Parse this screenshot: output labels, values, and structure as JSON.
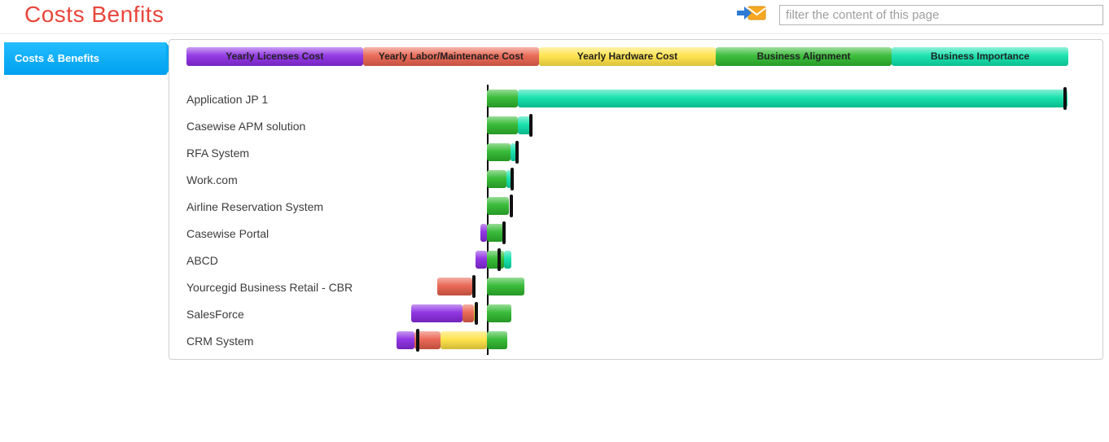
{
  "header": {
    "title": "Costs Benfits",
    "filter_placeholder": "filter the content of this page"
  },
  "sidebar": {
    "tab_label": "Costs & Benefits",
    "tab_color": "#00a8f0"
  },
  "legend": [
    {
      "label": "Yearly Licenses Cost",
      "color": "#8b2be2"
    },
    {
      "label": "Yearly Labor/Maintenance Cost",
      "color": "#e8604c"
    },
    {
      "label": "Yearly Hardware Cost",
      "color": "#ffe243"
    },
    {
      "label": "Business Alignment",
      "color": "#2eb82e"
    },
    {
      "label": "Business Importance",
      "color": "#0ce0aa"
    }
  ],
  "chart_data": {
    "type": "bar",
    "orientation": "horizontal-diverging",
    "note": "Segment extents are in pixels relative to the zero axis; negative = costs (left of axis), positive = benefits (right of axis). No numeric axis labels are shown in the source image.",
    "colors": {
      "purple": "#8b2be2",
      "red": "#e8604c",
      "yellow": "#ffe243",
      "green": "#2eb82e",
      "teal": "#0ce0aa"
    },
    "axis_color": "#000000",
    "marker_color": "#111111",
    "rows": [
      {
        "label": "Application JP 1",
        "segments": [
          {
            "color": "green",
            "from": 0,
            "to": 38
          },
          {
            "color": "teal",
            "from": 38,
            "to": 713
          }
        ],
        "marker": 710
      },
      {
        "label": "Casewise APM solution",
        "segments": [
          {
            "color": "green",
            "from": 0,
            "to": 38
          },
          {
            "color": "teal",
            "from": 38,
            "to": 56
          }
        ],
        "marker": 54
      },
      {
        "label": "RFA System",
        "segments": [
          {
            "color": "green",
            "from": 0,
            "to": 29
          },
          {
            "color": "teal",
            "from": 29,
            "to": 36
          }
        ],
        "marker": 37
      },
      {
        "label": "Work.com",
        "segments": [
          {
            "color": "green",
            "from": 0,
            "to": 24
          },
          {
            "color": "teal",
            "from": 24,
            "to": 30
          }
        ],
        "marker": 31
      },
      {
        "label": "Airline Reservation System",
        "segments": [
          {
            "color": "green",
            "from": 0,
            "to": 27
          }
        ],
        "marker": 30
      },
      {
        "label": "Casewise Portal",
        "segments": [
          {
            "color": "purple",
            "from": -8,
            "to": 0
          },
          {
            "color": "green",
            "from": 0,
            "to": 20
          }
        ],
        "marker": 21
      },
      {
        "label": "ABCD",
        "segments": [
          {
            "color": "purple",
            "from": -14,
            "to": 0
          },
          {
            "color": "green",
            "from": 0,
            "to": 21
          },
          {
            "color": "teal",
            "from": 21,
            "to": 30
          }
        ],
        "marker": 15
      },
      {
        "label": "Yourcegid Business Retail - CBR",
        "segments": [
          {
            "color": "red",
            "from": -61,
            "to": -18
          },
          {
            "color": "green",
            "from": 0,
            "to": 46
          }
        ],
        "marker": -16
      },
      {
        "label": "SalesForce",
        "segments": [
          {
            "color": "purple",
            "from": -93,
            "to": -30
          },
          {
            "color": "red",
            "from": -30,
            "to": -16
          },
          {
            "color": "yellow",
            "from": -16,
            "to": -12
          },
          {
            "color": "green",
            "from": 0,
            "to": 30
          }
        ],
        "marker": -13
      },
      {
        "label": "CRM System",
        "segments": [
          {
            "color": "purple",
            "from": -111,
            "to": -89
          },
          {
            "color": "red",
            "from": -89,
            "to": -57
          },
          {
            "color": "yellow",
            "from": -57,
            "to": 0
          },
          {
            "color": "green",
            "from": 0,
            "to": 25
          }
        ],
        "marker": -85
      }
    ]
  }
}
